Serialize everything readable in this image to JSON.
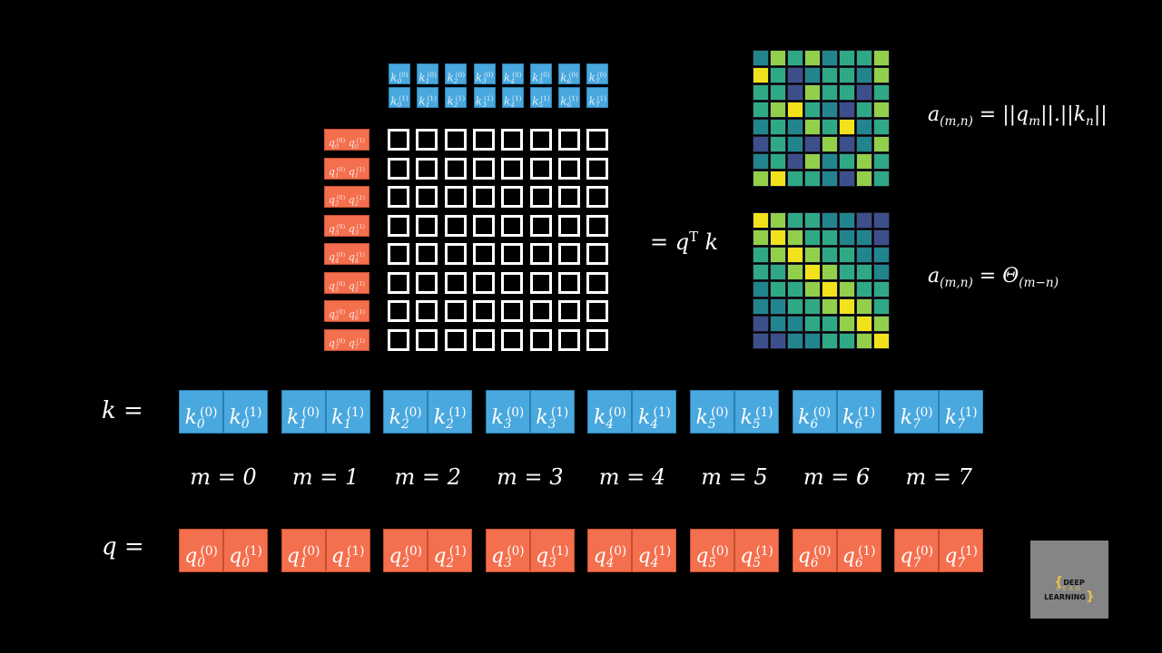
{
  "equals_qtk": {
    "lhs": "= q",
    "sup": "T",
    "rhs": "k"
  },
  "formula_top": {
    "a": "a",
    "sub": "(m,n)",
    "rhs": "= ||q",
    "rhs_sub": "m",
    "mid": "||.||k",
    "mid_sub": "n",
    "end": "||"
  },
  "formula_bottom": {
    "a": "a",
    "sub": "(m,n)",
    "rhs": "= Θ",
    "rhs_sub": "(m−n)"
  },
  "k_label": "k =",
  "q_label": "q =",
  "m_labels": [
    "m = 0",
    "m = 1",
    "m = 2",
    "m = 3",
    "m = 4",
    "m = 5",
    "m = 6",
    "m = 7"
  ],
  "indices": [
    "0",
    "1",
    "2",
    "3",
    "4",
    "5",
    "6",
    "7"
  ],
  "dims": [
    "(0)",
    "(1)"
  ],
  "logo": {
    "main": "DEEP LEARNING",
    "sub": "HERO",
    "brace_l": "{",
    "brace_r": "}"
  },
  "colors": {
    "key": "#49a8de",
    "query": "#f46f4e",
    "background": "#000000"
  },
  "heatmap_top": [
    [
      2,
      4,
      3,
      4,
      2,
      3,
      3,
      4
    ],
    [
      5,
      3,
      1,
      2,
      3,
      3,
      2,
      4
    ],
    [
      3,
      3,
      1,
      4,
      3,
      3,
      1,
      3
    ],
    [
      3,
      4,
      5,
      3,
      2,
      1,
      3,
      4
    ],
    [
      2,
      3,
      2,
      4,
      3,
      5,
      2,
      3
    ],
    [
      1,
      3,
      2,
      1,
      4,
      1,
      2,
      4
    ],
    [
      2,
      3,
      1,
      4,
      2,
      3,
      4,
      3
    ],
    [
      4,
      5,
      3,
      3,
      2,
      1,
      4,
      3
    ]
  ],
  "heatmap_bottom": [
    [
      5,
      4,
      3,
      3,
      2,
      2,
      1,
      1
    ],
    [
      4,
      5,
      4,
      3,
      3,
      2,
      2,
      1
    ],
    [
      3,
      4,
      5,
      4,
      3,
      3,
      2,
      2
    ],
    [
      3,
      3,
      4,
      5,
      4,
      3,
      3,
      2
    ],
    [
      2,
      3,
      3,
      4,
      5,
      4,
      3,
      3
    ],
    [
      2,
      2,
      3,
      3,
      4,
      5,
      4,
      3
    ],
    [
      1,
      2,
      2,
      3,
      3,
      4,
      5,
      4
    ],
    [
      1,
      1,
      2,
      2,
      3,
      3,
      4,
      5
    ]
  ],
  "palette": [
    "#3b0f55",
    "#3d4f8b",
    "#22858d",
    "#2fa985",
    "#92cf4a",
    "#f2e21b"
  ]
}
